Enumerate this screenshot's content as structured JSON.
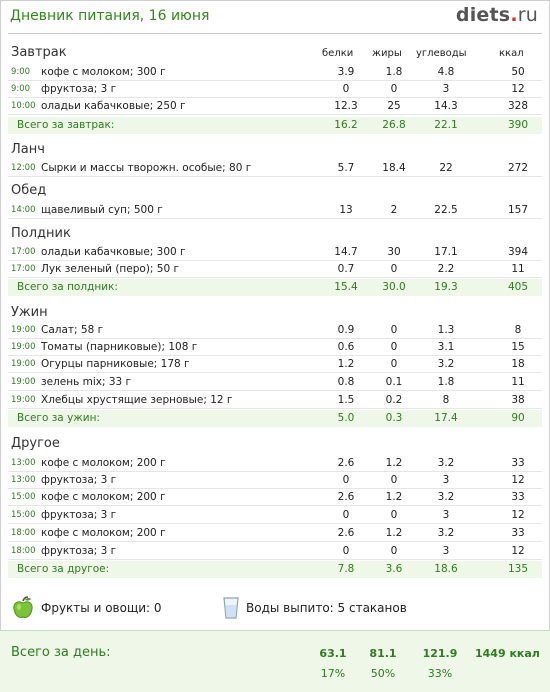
{
  "header": {
    "title": "Дневник питания, 16 июня",
    "logo_main": "diets",
    "logo_tld": "ru"
  },
  "columns": {
    "protein": "белки",
    "fat": "жиры",
    "carbs": "углеводы",
    "kcal": "ккал"
  },
  "sections": [
    {
      "name": "Завтрак",
      "items": [
        {
          "time": "9:00",
          "food": "кофе с молоком; 300 г",
          "p": "3.9",
          "f": "1.8",
          "c": "4.8",
          "k": "50"
        },
        {
          "time": "9:00",
          "food": "фруктоза; 3 г",
          "p": "0",
          "f": "0",
          "c": "3",
          "k": "12"
        },
        {
          "time": "10:00",
          "food": "оладьи кабачковые; 250 г",
          "p": "12.3",
          "f": "25",
          "c": "14.3",
          "k": "328"
        }
      ],
      "total": {
        "label": "Всего за завтрак:",
        "p": "16.2",
        "f": "26.8",
        "c": "22.1",
        "k": "390"
      }
    },
    {
      "name": "Ланч",
      "items": [
        {
          "time": "12:00",
          "food": "Сырки и массы творожн. особые; 80 г",
          "p": "5.7",
          "f": "18.4",
          "c": "22",
          "k": "272"
        }
      ]
    },
    {
      "name": "Обед",
      "items": [
        {
          "time": "14:00",
          "food": "щавеливый суп; 500 г",
          "p": "13",
          "f": "2",
          "c": "22.5",
          "k": "157"
        }
      ]
    },
    {
      "name": "Полдник",
      "items": [
        {
          "time": "17:00",
          "food": "оладьи кабачковые; 300 г",
          "p": "14.7",
          "f": "30",
          "c": "17.1",
          "k": "394"
        },
        {
          "time": "17:00",
          "food": "Лук зеленый (перо); 50 г",
          "p": "0.7",
          "f": "0",
          "c": "2.2",
          "k": "11"
        }
      ],
      "total": {
        "label": "Всего за полдник:",
        "p": "15.4",
        "f": "30.0",
        "c": "19.3",
        "k": "405"
      }
    },
    {
      "name": "Ужин",
      "items": [
        {
          "time": "19:00",
          "food": "Салат; 58 г",
          "p": "0.9",
          "f": "0",
          "c": "1.3",
          "k": "8"
        },
        {
          "time": "19:00",
          "food": "Томаты (парниковые); 108 г",
          "p": "0.6",
          "f": "0",
          "c": "3.1",
          "k": "15"
        },
        {
          "time": "19:00",
          "food": "Огурцы парниковые; 178 г",
          "p": "1.2",
          "f": "0",
          "c": "3.2",
          "k": "18"
        },
        {
          "time": "19:00",
          "food": "зелень mix; 33 г",
          "p": "0.8",
          "f": "0.1",
          "c": "1.8",
          "k": "11"
        },
        {
          "time": "19:00",
          "food": "Хлебцы хрустящие зерновые; 12 г",
          "p": "1.5",
          "f": "0.2",
          "c": "8",
          "k": "38"
        }
      ],
      "total": {
        "label": "Всего за ужин:",
        "p": "5.0",
        "f": "0.3",
        "c": "17.4",
        "k": "90"
      }
    },
    {
      "name": "Другое",
      "items": [
        {
          "time": "13:00",
          "food": "кофе с молоком; 200 г",
          "p": "2.6",
          "f": "1.2",
          "c": "3.2",
          "k": "33"
        },
        {
          "time": "13:00",
          "food": "фруктоза; 3 г",
          "p": "0",
          "f": "0",
          "c": "3",
          "k": "12"
        },
        {
          "time": "15:00",
          "food": "кофе с молоком; 200 г",
          "p": "2.6",
          "f": "1.2",
          "c": "3.2",
          "k": "33"
        },
        {
          "time": "15:00",
          "food": "фруктоза; 3 г",
          "p": "0",
          "f": "0",
          "c": "3",
          "k": "12"
        },
        {
          "time": "18:00",
          "food": "кофе с молоком; 200 г",
          "p": "2.6",
          "f": "1.2",
          "c": "3.2",
          "k": "33"
        },
        {
          "time": "18:00",
          "food": "фруктоза; 3 г",
          "p": "0",
          "f": "0",
          "c": "3",
          "k": "12"
        }
      ],
      "total": {
        "label": "Всего за другое:",
        "p": "7.8",
        "f": "3.6",
        "c": "18.6",
        "k": "135"
      }
    }
  ],
  "extras": {
    "fruits_icon": "green-apple-icon",
    "fruits": "Фрукты и овощи: 0",
    "water_icon": "water-glass-icon",
    "water": "Воды выпито: 5 стаканов"
  },
  "day_total": {
    "label": "Всего за день:",
    "p": "63.1",
    "f": "81.1",
    "c": "121.9",
    "kcal": "1449 ккал",
    "p_pct": "17%",
    "f_pct": "50%",
    "c_pct": "33%"
  },
  "colors": {
    "accent_green": "#2e7d1f",
    "total_bg": "#eef7e8",
    "logo_dot": "#d23b2c"
  }
}
